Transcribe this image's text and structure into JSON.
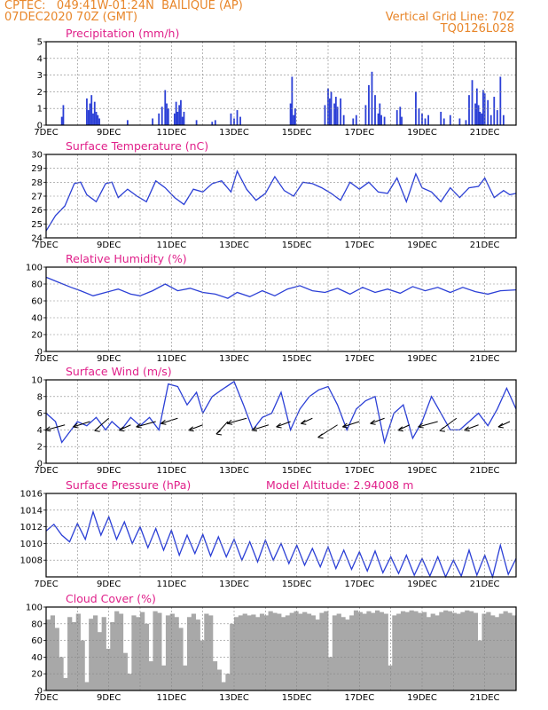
{
  "header": {
    "line1": "CPTEC:   049:41W-01:24N  BAILIQUE (AP)",
    "line2": "07DEC2020 70Z (GMT)",
    "grid_note": "Vertical Grid Line: 70Z",
    "code": "TQ0126L028"
  },
  "colors": {
    "header": "#e8862a",
    "title": "#e0208a",
    "line": "#2b3fd6",
    "cloud": "#a8a8a8",
    "grid": "#888888"
  },
  "x_axis": {
    "labels": [
      "7DEC",
      "9DEC",
      "11DEC",
      "13DEC",
      "15DEC",
      "17DEC",
      "19DEC",
      "21DEC"
    ],
    "label_days": [
      7,
      9,
      11,
      13,
      15,
      17,
      19,
      21
    ],
    "range_days": [
      7,
      22
    ]
  },
  "chart_data": [
    {
      "type": "bar",
      "title": "Precipitation (mm/h)",
      "ylim": [
        0,
        5
      ],
      "yticks": [
        "0",
        "1",
        "2",
        "3",
        "4",
        "5"
      ],
      "x_days": [
        7.5,
        7.55,
        8.3,
        8.35,
        8.4,
        8.45,
        8.5,
        8.55,
        8.6,
        8.65,
        8.7,
        9.6,
        10.4,
        10.6,
        10.7,
        10.8,
        10.85,
        10.9,
        11.1,
        11.15,
        11.2,
        11.25,
        11.3,
        11.35,
        11.4,
        11.8,
        12.3,
        12.4,
        12.9,
        13.0,
        13.1,
        13.2,
        14.8,
        14.85,
        14.9,
        14.95,
        15.9,
        16.0,
        16.05,
        16.1,
        16.2,
        16.25,
        16.3,
        16.4,
        16.5,
        16.8,
        16.9,
        17.2,
        17.3,
        17.4,
        17.5,
        17.6,
        17.65,
        17.7,
        17.8,
        18.2,
        18.3,
        18.35,
        18.8,
        18.9,
        19.0,
        19.1,
        19.2,
        19.6,
        19.7,
        19.9,
        20.2,
        20.4,
        20.5,
        20.6,
        20.7,
        20.75,
        20.8,
        20.85,
        20.9,
        20.95,
        21.0,
        21.1,
        21.2,
        21.3,
        21.4,
        21.5,
        21.6
      ],
      "values": [
        0.5,
        1.2,
        1.6,
        0.9,
        1.3,
        1.8,
        0.7,
        1.4,
        0.8,
        0.6,
        0.4,
        0.3,
        0.4,
        0.7,
        1.1,
        2.1,
        1.3,
        1.0,
        0.7,
        1.4,
        0.8,
        1.2,
        1.5,
        0.5,
        0.8,
        0.3,
        0.2,
        0.3,
        0.7,
        0.4,
        0.9,
        0.5,
        1.3,
        2.9,
        0.6,
        1.0,
        1.2,
        2.2,
        1.6,
        2.0,
        1.3,
        1.7,
        1.1,
        1.6,
        0.6,
        0.4,
        0.6,
        1.2,
        2.4,
        3.2,
        1.8,
        0.7,
        1.3,
        0.6,
        0.5,
        0.9,
        1.1,
        0.5,
        2.0,
        1.0,
        0.7,
        0.4,
        0.6,
        0.8,
        0.4,
        0.6,
        0.4,
        0.3,
        1.8,
        2.7,
        1.3,
        2.2,
        1.2,
        0.8,
        0.7,
        2.1,
        1.9,
        1.5,
        0.6,
        1.7,
        0.9,
        2.9,
        0.6
      ]
    },
    {
      "type": "line",
      "title": "Surface Temperature (nC)",
      "ylim": [
        24,
        30
      ],
      "yticks": [
        "24",
        "25",
        "26",
        "27",
        "28",
        "29",
        "30"
      ],
      "x": [
        7.0,
        7.3,
        7.6,
        7.9,
        8.1,
        8.3,
        8.6,
        8.9,
        9.1,
        9.3,
        9.6,
        9.9,
        10.2,
        10.5,
        10.8,
        11.1,
        11.4,
        11.7,
        12.0,
        12.3,
        12.6,
        12.9,
        13.1,
        13.4,
        13.7,
        14.0,
        14.3,
        14.6,
        14.9,
        15.2,
        15.5,
        15.8,
        16.1,
        16.4,
        16.7,
        17.0,
        17.3,
        17.6,
        17.9,
        18.2,
        18.5,
        18.8,
        19.0,
        19.3,
        19.6,
        19.9,
        20.2,
        20.5,
        20.8,
        21.0,
        21.3,
        21.6,
        21.8,
        22.0
      ],
      "series": [
        {
          "values": [
            24.5,
            25.6,
            26.3,
            27.9,
            28.0,
            27.1,
            26.6,
            27.9,
            28.0,
            26.9,
            27.5,
            27.0,
            26.6,
            28.1,
            27.6,
            26.9,
            26.4,
            27.5,
            27.3,
            27.9,
            28.1,
            27.3,
            28.8,
            27.5,
            26.7,
            27.2,
            28.4,
            27.4,
            27.0,
            28.0,
            27.9,
            27.6,
            27.2,
            26.7,
            28.0,
            27.5,
            28.0,
            27.3,
            27.2,
            28.3,
            26.6,
            28.6,
            27.6,
            27.3,
            26.6,
            27.6,
            26.9,
            27.6,
            27.7,
            28.3,
            26.9,
            27.4,
            27.1,
            27.2
          ]
        }
      ]
    },
    {
      "type": "line",
      "title": "Relative Humidity (%)",
      "ylim": [
        0,
        100
      ],
      "yticks": [
        "0",
        "20",
        "40",
        "60",
        "80",
        "100"
      ],
      "x": [
        7.0,
        7.4,
        7.8,
        8.1,
        8.5,
        8.9,
        9.3,
        9.7,
        10.0,
        10.4,
        10.8,
        11.2,
        11.6,
        12.0,
        12.4,
        12.8,
        13.1,
        13.5,
        13.9,
        14.3,
        14.7,
        15.1,
        15.5,
        15.9,
        16.3,
        16.7,
        17.1,
        17.5,
        17.9,
        18.3,
        18.7,
        19.1,
        19.5,
        19.9,
        20.3,
        20.7,
        21.1,
        21.5,
        22.0
      ],
      "series": [
        {
          "values": [
            88,
            82,
            76,
            72,
            66,
            70,
            74,
            68,
            66,
            72,
            80,
            72,
            75,
            70,
            68,
            63,
            70,
            65,
            72,
            66,
            74,
            78,
            72,
            70,
            75,
            68,
            76,
            70,
            74,
            69,
            77,
            72,
            76,
            70,
            76,
            71,
            68,
            72,
            73
          ]
        }
      ]
    },
    {
      "type": "line",
      "title": "Surface Wind (m/s)",
      "ylim": [
        0,
        10
      ],
      "yticks": [
        "0",
        "2",
        "4",
        "6",
        "8",
        "10"
      ],
      "x": [
        7.0,
        7.3,
        7.5,
        7.8,
        8.0,
        8.3,
        8.6,
        8.9,
        9.1,
        9.4,
        9.7,
        10.0,
        10.3,
        10.6,
        10.9,
        11.2,
        11.5,
        11.8,
        12.0,
        12.3,
        12.6,
        13.0,
        13.3,
        13.6,
        13.9,
        14.2,
        14.5,
        14.8,
        15.1,
        15.4,
        15.7,
        16.0,
        16.3,
        16.6,
        16.9,
        17.2,
        17.5,
        17.8,
        18.1,
        18.4,
        18.7,
        19.0,
        19.3,
        19.6,
        19.9,
        20.2,
        20.5,
        20.8,
        21.1,
        21.4,
        21.7,
        22.0
      ],
      "series": [
        {
          "values": [
            6.0,
            5.0,
            2.5,
            4.0,
            5.0,
            4.5,
            5.5,
            4.0,
            5.0,
            4.0,
            5.5,
            4.5,
            5.5,
            4.0,
            9.5,
            9.2,
            7.0,
            8.5,
            6.0,
            8.0,
            8.8,
            9.8,
            7.0,
            4.0,
            5.5,
            6.0,
            8.5,
            4.0,
            6.5,
            8.0,
            8.8,
            9.2,
            7.0,
            4.0,
            6.5,
            7.5,
            8.0,
            2.5,
            6.0,
            7.0,
            3.0,
            5.0,
            8.0,
            6.0,
            4.0,
            4.0,
            5.0,
            6.0,
            4.5,
            6.5,
            9.0,
            6.5
          ]
        }
      ],
      "wind_arrow_days": [
        7.6,
        8.4,
        9.0,
        9.7,
        10.5,
        11.2,
        12.0,
        12.8,
        13.4,
        14.1,
        14.8,
        15.5,
        16.3,
        17.0,
        17.8,
        18.6,
        19.5,
        20.1,
        20.8,
        21.8
      ]
    },
    {
      "type": "line",
      "title": "Surface Pressure (hPa)",
      "ylim": [
        1006,
        1016
      ],
      "yticks": [
        "1008",
        "1010",
        "1012",
        "1014",
        "1016"
      ],
      "annotation": "Model Altitude: 2.94008 m",
      "x": [
        7.0,
        7.25,
        7.5,
        7.75,
        8.0,
        8.25,
        8.5,
        8.75,
        9.0,
        9.25,
        9.5,
        9.75,
        10.0,
        10.25,
        10.5,
        10.75,
        11.0,
        11.25,
        11.5,
        11.75,
        12.0,
        12.25,
        12.5,
        12.75,
        13.0,
        13.25,
        13.5,
        13.75,
        14.0,
        14.25,
        14.5,
        14.75,
        15.0,
        15.25,
        15.5,
        15.75,
        16.0,
        16.25,
        16.5,
        16.75,
        17.0,
        17.25,
        17.5,
        17.75,
        18.0,
        18.25,
        18.5,
        18.75,
        19.0,
        19.25,
        19.5,
        19.75,
        20.0,
        20.25,
        20.5,
        20.75,
        21.0,
        21.25,
        21.5,
        21.75,
        22.0
      ],
      "series": [
        {
          "values": [
            1011.5,
            1012.3,
            1011.0,
            1010.2,
            1012.4,
            1010.5,
            1013.8,
            1011.0,
            1013.2,
            1010.5,
            1012.6,
            1010.0,
            1012.0,
            1009.5,
            1011.8,
            1009.2,
            1011.6,
            1008.6,
            1011.0,
            1008.8,
            1011.1,
            1008.5,
            1010.8,
            1008.4,
            1010.5,
            1008.0,
            1010.2,
            1007.8,
            1010.4,
            1008.0,
            1010.0,
            1007.6,
            1009.8,
            1007.4,
            1009.4,
            1007.2,
            1009.6,
            1007.0,
            1009.2,
            1006.9,
            1009.0,
            1006.7,
            1009.1,
            1006.5,
            1008.4,
            1006.4,
            1008.6,
            1006.2,
            1008.2,
            1006.1,
            1008.4,
            1006.0,
            1008.0,
            1006.1,
            1009.2,
            1006.2,
            1008.6,
            1006.0,
            1009.8,
            1006.3,
            1008.2
          ]
        }
      ]
    },
    {
      "type": "bar",
      "title": "Cloud Cover (%)",
      "ylim": [
        0,
        100
      ],
      "yticks": [
        "0",
        "20",
        "40",
        "60",
        "80",
        "100"
      ],
      "x_range": [
        7,
        22
      ],
      "values": [
        85,
        90,
        75,
        40,
        15,
        88,
        82,
        92,
        60,
        10,
        86,
        90,
        70,
        88,
        50,
        82,
        95,
        92,
        45,
        20,
        90,
        88,
        94,
        80,
        35,
        95,
        93,
        30,
        90,
        92,
        88,
        75,
        30,
        88,
        92,
        85,
        60,
        92,
        90,
        35,
        25,
        10,
        20,
        80,
        88,
        90,
        92,
        90,
        91,
        88,
        92,
        90,
        95,
        93,
        92,
        88,
        90,
        93,
        95,
        92,
        94,
        92,
        90,
        85,
        93,
        95,
        40,
        90,
        92,
        88,
        85,
        90,
        96,
        94,
        92,
        95,
        93,
        96,
        94,
        92,
        30,
        90,
        92,
        95,
        94,
        96,
        95,
        93,
        94,
        88,
        92,
        90,
        94,
        96,
        95,
        93,
        92,
        94,
        96,
        95,
        93,
        60,
        92,
        94,
        90,
        88,
        92,
        95,
        93,
        90
      ]
    }
  ]
}
